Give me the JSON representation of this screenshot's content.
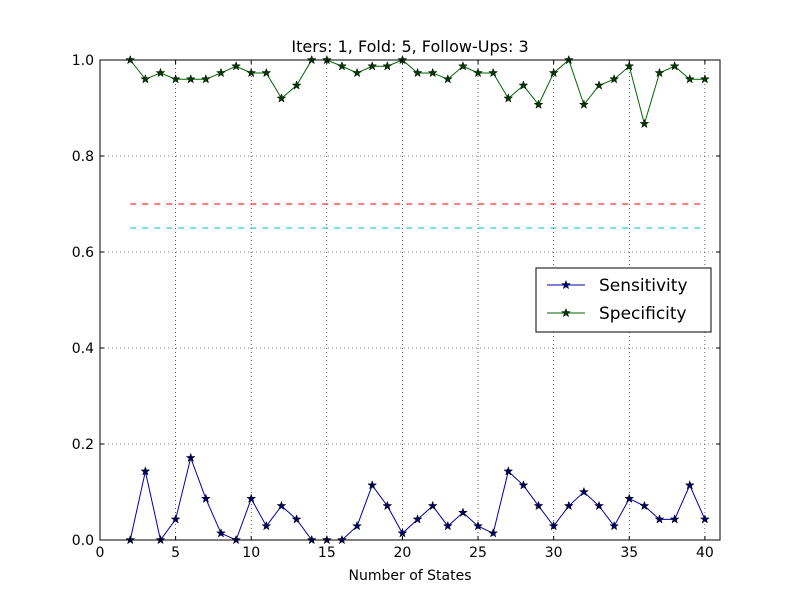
{
  "chart_data": {
    "type": "line",
    "title": "Iters: 1, Fold: 5, Follow-Ups: 3",
    "xlabel": "Number of States",
    "ylabel": "",
    "xlim": [
      0,
      41
    ],
    "ylim": [
      0.0,
      1.0
    ],
    "xticks": [
      "0",
      "5",
      "10",
      "15",
      "20",
      "25",
      "30",
      "35",
      "40"
    ],
    "yticks": [
      "0.0",
      "0.2",
      "0.4",
      "0.6",
      "0.8",
      "1.0"
    ],
    "grid": true,
    "legend_position": "center-right",
    "x": [
      2,
      3,
      4,
      5,
      6,
      7,
      8,
      9,
      10,
      11,
      12,
      13,
      14,
      15,
      16,
      17,
      18,
      19,
      20,
      21,
      22,
      23,
      24,
      25,
      26,
      27,
      28,
      29,
      30,
      31,
      32,
      33,
      34,
      35,
      36,
      37,
      38,
      39,
      40
    ],
    "series": [
      {
        "name": "Sensitivity",
        "color": "#0000aa",
        "marker": "star",
        "values": [
          0.0,
          0.143,
          0.0,
          0.043,
          0.171,
          0.086,
          0.014,
          0.0,
          0.086,
          0.029,
          0.071,
          0.043,
          0.0,
          0.0,
          0.0,
          0.029,
          0.114,
          0.071,
          0.014,
          0.043,
          0.071,
          0.029,
          0.057,
          0.029,
          0.014,
          0.143,
          0.114,
          0.071,
          0.029,
          0.071,
          0.1,
          0.071,
          0.029,
          0.086,
          0.071,
          0.043,
          0.043,
          0.114,
          0.043
        ]
      },
      {
        "name": "Specificity",
        "color": "#006600",
        "marker": "star",
        "values": [
          1.0,
          0.96,
          0.973,
          0.96,
          0.96,
          0.96,
          0.973,
          0.987,
          0.973,
          0.973,
          0.92,
          0.947,
          1.0,
          1.0,
          0.987,
          0.973,
          0.987,
          0.987,
          1.0,
          0.973,
          0.973,
          0.96,
          0.987,
          0.973,
          0.973,
          0.92,
          0.947,
          0.907,
          0.973,
          1.0,
          0.907,
          0.947,
          0.96,
          0.987,
          0.867,
          0.973,
          0.987,
          0.96,
          0.96
        ]
      }
    ],
    "reference_lines": [
      {
        "y": 0.7,
        "x_range": [
          2,
          40
        ],
        "color": "#ff0000",
        "style": "dashed"
      },
      {
        "y": 0.65,
        "x_range": [
          2,
          40
        ],
        "color": "#00bfbf",
        "style": "dashed"
      }
    ]
  }
}
